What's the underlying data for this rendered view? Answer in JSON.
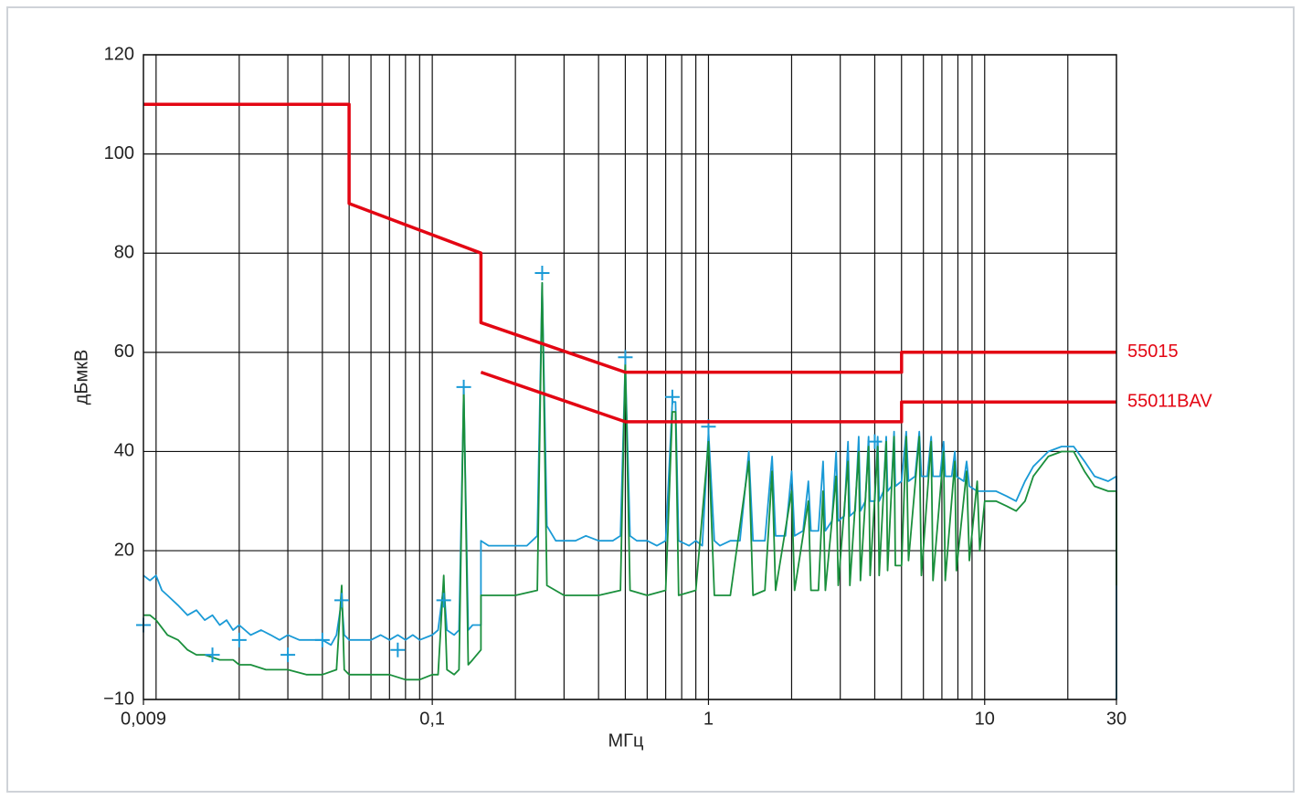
{
  "chart_data": {
    "type": "line",
    "xlabel": "МГц",
    "ylabel": "дБмкВ",
    "xscale": "log",
    "grid": true,
    "xlim": [
      0.009,
      30
    ],
    "ylim": [
      -10,
      120
    ],
    "xticks": [
      {
        "value": 0.009,
        "label": "0,009"
      },
      {
        "value": 0.1,
        "label": "0,1"
      },
      1,
      10,
      30
    ],
    "xgrid": [
      0.01,
      0.02,
      0.03,
      0.04,
      0.05,
      0.06,
      0.07,
      0.08,
      0.09,
      0.1,
      0.2,
      0.3,
      0.4,
      0.5,
      0.6,
      0.7,
      0.8,
      0.9,
      1,
      2,
      3,
      4,
      5,
      6,
      7,
      8,
      9,
      10,
      20
    ],
    "yticks": [
      {
        "value": -10,
        "label": "−10"
      },
      20,
      40,
      60,
      80,
      100,
      120
    ],
    "series": [
      {
        "color": "#1a9ad6",
        "x": [
          0.009,
          0.0095,
          0.01,
          0.0105,
          0.011,
          0.012,
          0.013,
          0.014,
          0.015,
          0.016,
          0.017,
          0.018,
          0.019,
          0.02,
          0.022,
          0.024,
          0.026,
          0.028,
          0.03,
          0.033,
          0.036,
          0.04,
          0.043,
          0.045,
          0.047,
          0.048,
          0.05,
          0.055,
          0.06,
          0.065,
          0.07,
          0.075,
          0.08,
          0.085,
          0.09,
          0.1,
          0.105,
          0.11,
          0.113,
          0.12,
          0.125,
          0.13,
          0.135,
          0.14,
          0.15,
          0.15,
          0.16,
          0.18,
          0.2,
          0.22,
          0.24,
          0.25,
          0.26,
          0.28,
          0.3,
          0.33,
          0.36,
          0.4,
          0.45,
          0.48,
          0.5,
          0.52,
          0.55,
          0.6,
          0.65,
          0.7,
          0.74,
          0.76,
          0.78,
          0.85,
          0.9,
          0.95,
          1.0,
          1.05,
          1.1,
          1.2,
          1.3,
          1.4,
          1.45,
          1.6,
          1.7,
          1.75,
          1.9,
          2.0,
          2.05,
          2.2,
          2.3,
          2.35,
          2.5,
          2.6,
          2.65,
          2.8,
          2.9,
          2.95,
          3.1,
          3.2,
          3.25,
          3.4,
          3.5,
          3.55,
          3.7,
          3.8,
          3.85,
          4.0,
          4.1,
          4.15,
          4.3,
          4.4,
          4.45,
          4.6,
          4.7,
          4.75,
          5.0,
          5.2,
          5.3,
          5.6,
          5.8,
          5.9,
          6.2,
          6.4,
          6.5,
          6.9,
          7.1,
          7.2,
          7.6,
          7.8,
          7.9,
          8.4,
          8.6,
          8.8,
          9.4,
          10,
          11,
          12,
          13,
          14,
          15,
          17,
          19,
          21,
          23,
          25,
          28,
          30,
          30
        ],
        "values": [
          15,
          14,
          15,
          12,
          11,
          9,
          7,
          8,
          6,
          7,
          5,
          6,
          4,
          5,
          3,
          4,
          3,
          2,
          3,
          2,
          2,
          2,
          1,
          3,
          10,
          3,
          2,
          2,
          2,
          3,
          2,
          3,
          2,
          3,
          2,
          3,
          4,
          13,
          4,
          3,
          4,
          52,
          4,
          5,
          5,
          22,
          21,
          21,
          21,
          21,
          23,
          74,
          25,
          22,
          22,
          22,
          23,
          22,
          22,
          23,
          58,
          23,
          22,
          22,
          21,
          22,
          50,
          50,
          22,
          21,
          22,
          21,
          44,
          22,
          21,
          22,
          22,
          40,
          22,
          22,
          39,
          23,
          23,
          36,
          23,
          24,
          34,
          24,
          24,
          38,
          24,
          26,
          40,
          26,
          27,
          42,
          27,
          28,
          43,
          28,
          30,
          43,
          30,
          30,
          43,
          30,
          32,
          43,
          32,
          33,
          44,
          33,
          34,
          44,
          34,
          35,
          44,
          35,
          35,
          43,
          35,
          35,
          42,
          35,
          35,
          40,
          35,
          34,
          38,
          33,
          32,
          32,
          32,
          31,
          30,
          34,
          37,
          40,
          41,
          41,
          38,
          35,
          34,
          35,
          -10
        ]
      },
      {
        "color": "#1a8f3c",
        "x": [
          0.009,
          0.0095,
          0.01,
          0.011,
          0.012,
          0.013,
          0.014,
          0.015,
          0.017,
          0.019,
          0.02,
          0.022,
          0.025,
          0.03,
          0.035,
          0.04,
          0.045,
          0.047,
          0.048,
          0.05,
          0.06,
          0.07,
          0.08,
          0.09,
          0.1,
          0.105,
          0.11,
          0.113,
          0.12,
          0.125,
          0.13,
          0.135,
          0.14,
          0.15,
          0.15,
          0.2,
          0.24,
          0.25,
          0.26,
          0.3,
          0.4,
          0.48,
          0.5,
          0.52,
          0.6,
          0.7,
          0.74,
          0.76,
          0.78,
          0.9,
          1.0,
          1.05,
          1.2,
          1.4,
          1.45,
          1.6,
          1.7,
          1.75,
          2.0,
          2.05,
          2.3,
          2.35,
          2.5,
          2.6,
          2.65,
          2.9,
          2.95,
          3.2,
          3.25,
          3.5,
          3.55,
          3.8,
          3.85,
          4.1,
          4.15,
          4.4,
          4.45,
          4.7,
          4.75,
          5.0,
          5.2,
          5.3,
          5.8,
          5.9,
          6.4,
          6.5,
          7.1,
          7.2,
          7.8,
          7.9,
          8.6,
          8.8,
          9.4,
          9.6,
          10,
          11,
          12,
          13,
          14,
          15,
          17,
          19,
          21,
          23,
          25,
          28,
          30,
          30
        ],
        "values": [
          7,
          7,
          6,
          3,
          2,
          0,
          -1,
          -1,
          -2,
          -2,
          -3,
          -3,
          -4,
          -4,
          -5,
          -5,
          -4,
          13,
          -4,
          -5,
          -5,
          -5,
          -6,
          -6,
          -5,
          -5,
          15,
          -4,
          -5,
          -4,
          53,
          -3,
          -2,
          0,
          11,
          11,
          12,
          74,
          13,
          11,
          11,
          12,
          58,
          12,
          11,
          12,
          48,
          48,
          11,
          12,
          42,
          11,
          11,
          38,
          11,
          12,
          36,
          12,
          32,
          12,
          30,
          12,
          12,
          32,
          12,
          35,
          13,
          38,
          13,
          40,
          14,
          41,
          15,
          41,
          15,
          42,
          16,
          43,
          17,
          17,
          43,
          18,
          43,
          15,
          42,
          14,
          40,
          14,
          38,
          16,
          36,
          18,
          34,
          20,
          30,
          30,
          29,
          28,
          30,
          35,
          39,
          40,
          40,
          36,
          33,
          32,
          32,
          13
        ]
      },
      {
        "color": "#1a9ad6",
        "marker": "+",
        "x": [
          0.009,
          0.016,
          0.02,
          0.03,
          0.04,
          0.047,
          0.075,
          0.11,
          0.13,
          0.25,
          0.5,
          0.74,
          1.0,
          4.0
        ],
        "values": [
          5,
          -1,
          2,
          -1,
          2,
          10,
          0,
          10,
          53,
          76,
          59,
          51,
          45,
          42
        ]
      },
      {
        "name": "55015",
        "color": "#e30613",
        "width": 3.5,
        "x": [
          0.009,
          0.05,
          0.05,
          0.15,
          0.15,
          0.5,
          5,
          5,
          30
        ],
        "values": [
          110,
          110,
          90,
          80,
          66,
          56,
          56,
          60,
          60
        ]
      },
      {
        "name": "55011BAV",
        "color": "#e30613",
        "width": 3.5,
        "x": [
          0.15,
          0.5,
          5,
          5,
          30
        ],
        "values": [
          56,
          46,
          46,
          50,
          50
        ]
      }
    ]
  }
}
